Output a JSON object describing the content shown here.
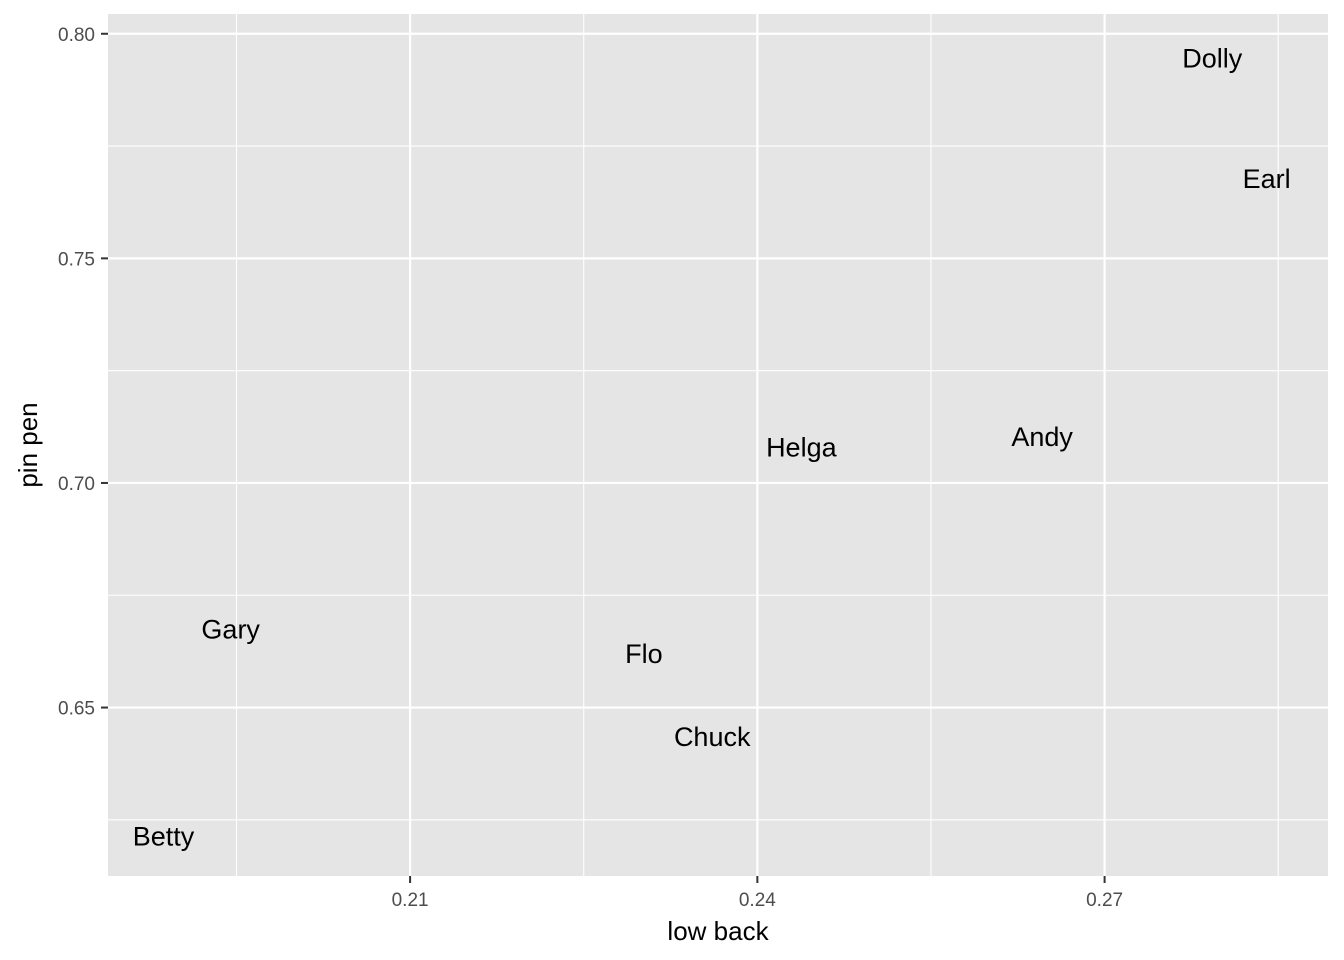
{
  "chart_data": {
    "type": "scatter",
    "xlabel": "low back",
    "ylabel": "pin pen",
    "xlim": [
      0.1839,
      0.2893
    ],
    "ylim": [
      0.6125,
      0.8044
    ],
    "x_ticks": [
      {
        "value": 0.21,
        "label": "0.21"
      },
      {
        "value": 0.24,
        "label": "0.24"
      },
      {
        "value": 0.27,
        "label": "0.27"
      }
    ],
    "x_minor": [
      0.195,
      0.225,
      0.255,
      0.285
    ],
    "y_ticks": [
      {
        "value": 0.65,
        "label": "0.65"
      },
      {
        "value": 0.7,
        "label": "0.70"
      },
      {
        "value": 0.75,
        "label": "0.75"
      },
      {
        "value": 0.8,
        "label": "0.80"
      }
    ],
    "y_minor": [
      0.625,
      0.675,
      0.725,
      0.775
    ],
    "grid": true,
    "colors": {
      "panel": "#e5e5e5",
      "grid": "#ffffff",
      "text": "#000000",
      "tick_text": "#4d4d4d"
    },
    "points": [
      {
        "label": "Andy",
        "x": 0.2646,
        "y": 0.7105
      },
      {
        "label": "Betty",
        "x": 0.1887,
        "y": 0.6215
      },
      {
        "label": "Chuck",
        "x": 0.2361,
        "y": 0.6437
      },
      {
        "label": "Dolly",
        "x": 0.2793,
        "y": 0.7947
      },
      {
        "label": "Earl",
        "x": 0.284,
        "y": 0.7679
      },
      {
        "label": "Flo",
        "x": 0.2302,
        "y": 0.6621
      },
      {
        "label": "Gary",
        "x": 0.1945,
        "y": 0.6676
      },
      {
        "label": "Helga",
        "x": 0.2438,
        "y": 0.7081
      }
    ]
  }
}
